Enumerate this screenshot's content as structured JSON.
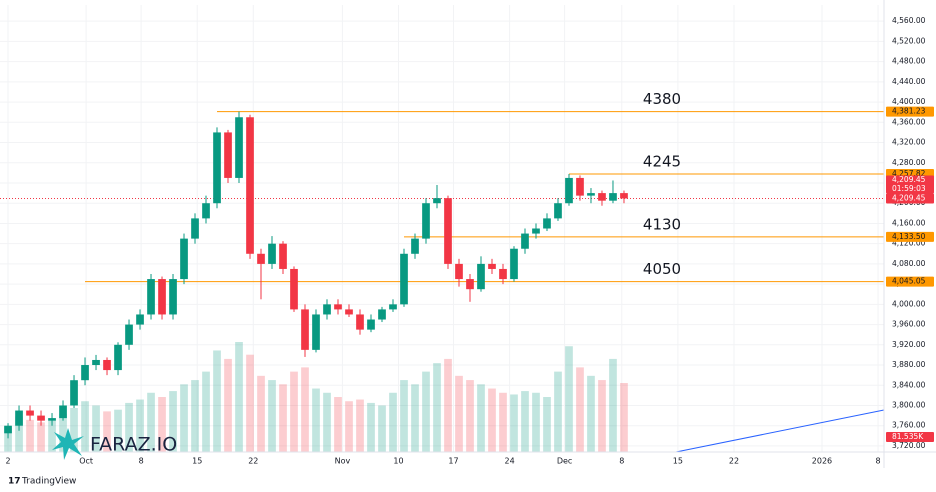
{
  "chart_data": {
    "type": "candlestick",
    "xlim": [
      -0.73,
      79.64
    ],
    "xticks": [
      {
        "value": 0,
        "label": "2"
      },
      {
        "value": 7.1,
        "label": "Oct"
      },
      {
        "value": 12.1,
        "label": "8"
      },
      {
        "value": 17.2,
        "label": "15"
      },
      {
        "value": 22.3,
        "label": "22"
      },
      {
        "value": 30.4,
        "label": "Nov"
      },
      {
        "value": 35.5,
        "label": "10"
      },
      {
        "value": 40.5,
        "label": "17"
      },
      {
        "value": 45.6,
        "label": "24"
      },
      {
        "value": 50.6,
        "label": "Dec"
      },
      {
        "value": 55.8,
        "label": "8"
      },
      {
        "value": 60.9,
        "label": "15"
      },
      {
        "value": 66,
        "label": "22"
      },
      {
        "value": 74,
        "label": "2026"
      },
      {
        "value": 79.1,
        "label": "8"
      }
    ],
    "ylim": [
      3708,
      4592
    ],
    "yticks": [
      {
        "value": 3720,
        "label": "3,720.00"
      },
      {
        "value": 3760,
        "label": "3,760.00"
      },
      {
        "value": 3800,
        "label": "3,800.00"
      },
      {
        "value": 3840,
        "label": "3,840.00"
      },
      {
        "value": 3880,
        "label": "3,880.00"
      },
      {
        "value": 3920,
        "label": "3,920.00"
      },
      {
        "value": 3960,
        "label": "3,960.00"
      },
      {
        "value": 4000,
        "label": "4,000.00"
      },
      {
        "value": 4040,
        "label": "4,040.00"
      },
      {
        "value": 4080,
        "label": "4,080.00"
      },
      {
        "value": 4120,
        "label": "4,120.00"
      },
      {
        "value": 4160,
        "label": "4,160.00"
      },
      {
        "value": 4200,
        "label": "4,200.00"
      },
      {
        "value": 4240,
        "label": "4,240.00"
      },
      {
        "value": 4280,
        "label": "4,280.00"
      },
      {
        "value": 4320,
        "label": "4,320.00"
      },
      {
        "value": 4360,
        "label": "4,360.00"
      },
      {
        "value": 4400,
        "label": "4,400.00"
      },
      {
        "value": 4440,
        "label": "4,440.00"
      },
      {
        "value": 4480,
        "label": "4,480.00"
      },
      {
        "value": 4520,
        "label": "4,520.00"
      },
      {
        "value": 4560,
        "label": "4,560.00"
      }
    ],
    "up_color": "#089981",
    "down_color": "#f23645",
    "open": [
      3745,
      3760,
      3790,
      3780,
      3770,
      3775,
      3800,
      3850,
      3880,
      3890,
      3870,
      3920,
      3960,
      3980,
      4050,
      3980,
      4050,
      4130,
      4170,
      4200,
      4340,
      4250,
      4370,
      4100,
      4080,
      4120,
      4070,
      3990,
      3910,
      3980,
      4000,
      3990,
      3980,
      3950,
      3970,
      3990,
      4000,
      4100,
      4130,
      4200,
      4210,
      4080,
      4050,
      4030,
      4080,
      4070,
      4050,
      4110,
      4140,
      4150,
      4170,
      4200,
      4250,
      4215,
      4220,
      4205,
      4220
    ],
    "high": [
      3765,
      3800,
      3800,
      3790,
      3785,
      3810,
      3860,
      3895,
      3900,
      3895,
      3925,
      3970,
      3990,
      4060,
      4055,
      4060,
      4140,
      4180,
      4215,
      4350,
      4345,
      4381.23,
      4375,
      4110,
      4135,
      4125,
      4075,
      4000,
      3990,
      4010,
      4010,
      4000,
      3990,
      3980,
      3995,
      4010,
      4110,
      4140,
      4210,
      4236,
      4215,
      4090,
      4060,
      4095,
      4090,
      4080,
      4115,
      4150,
      4160,
      4180,
      4210,
      4257.82,
      4255,
      4230,
      4225,
      4245,
      4225
    ],
    "low": [
      3735,
      3750,
      3770,
      3760,
      3760,
      3770,
      3795,
      3840,
      3870,
      3860,
      3860,
      3910,
      3950,
      3970,
      3970,
      3970,
      4040,
      4120,
      4160,
      4190,
      4240,
      4240,
      4090,
      4010,
      4070,
      4060,
      3985,
      3896,
      3905,
      3970,
      3980,
      3975,
      3940,
      3945,
      3965,
      3985,
      3995,
      4090,
      4120,
      4190,
      4070,
      4035,
      4005,
      4025,
      4060,
      4040,
      4045,
      4100,
      4130,
      4145,
      4165,
      4195,
      4205,
      4200,
      4195,
      4200,
      4200
    ],
    "close": [
      3760,
      3790,
      3780,
      3770,
      3775,
      3800,
      3850,
      3880,
      3890,
      3870,
      3920,
      3960,
      3980,
      4050,
      3980,
      4050,
      4130,
      4170,
      4200,
      4340,
      4250,
      4370,
      4100,
      4080,
      4120,
      4070,
      3990,
      3910,
      3980,
      4000,
      3990,
      3980,
      3950,
      3970,
      3990,
      4000,
      4100,
      4130,
      4200,
      4210,
      4080,
      4050,
      4030,
      4080,
      4070,
      4050,
      4110,
      4140,
      4150,
      4170,
      4200,
      4250,
      4215,
      4220,
      4205,
      4220,
      4209.45
    ],
    "volume": [
      30000,
      42000,
      38000,
      35000,
      40000,
      45000,
      52000,
      60000,
      55000,
      48000,
      50000,
      58000,
      62000,
      70000,
      65000,
      72000,
      80000,
      85000,
      95000,
      120000,
      110000,
      130000,
      115000,
      90000,
      85000,
      80000,
      95000,
      100000,
      75000,
      70000,
      65000,
      60000,
      62000,
      58000,
      55000,
      70000,
      85000,
      80000,
      95000,
      105000,
      110000,
      90000,
      85000,
      80000,
      75000,
      70000,
      68000,
      72000,
      70000,
      65000,
      95000,
      125000,
      100000,
      90000,
      85000,
      110000,
      81535
    ],
    "volume_last_label": "81.535K",
    "levels": [
      {
        "label": "4380",
        "value": 4381.23,
        "value_label": "4,381.23",
        "start": 19
      },
      {
        "label": "4245",
        "value": 4257.82,
        "value_label": "4,257.82",
        "start": 51
      },
      {
        "label": "4130",
        "value": 4133.5,
        "value_label": "4,133.50",
        "start": 36
      },
      {
        "label": "4050",
        "value": 4045.05,
        "value_label": "4,045.05",
        "start": 7
      }
    ],
    "level_color": "#ff9800",
    "last_price": {
      "value": 4209.45,
      "label": "4,209.45"
    },
    "countdown": "01:59:03",
    "watermark": "FARAZ.IO",
    "brand": "TradingView"
  }
}
